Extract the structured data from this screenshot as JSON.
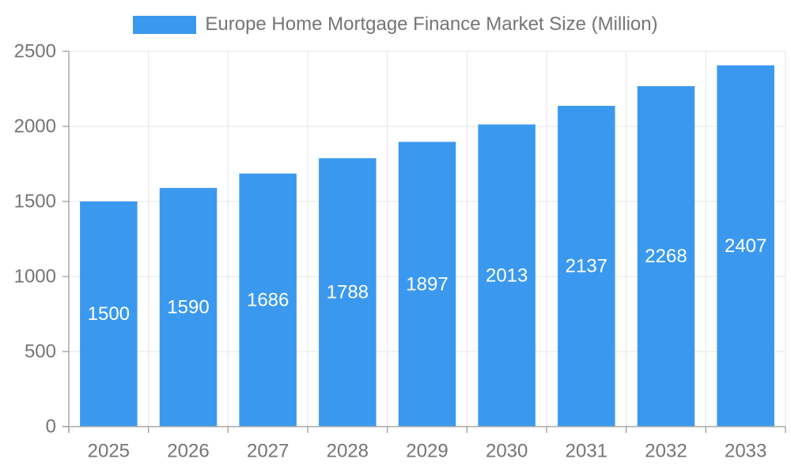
{
  "legend": {
    "label": "Europe Home Mortgage Finance Market Size (Million)"
  },
  "chart_data": {
    "type": "bar",
    "title": "",
    "xlabel": "",
    "ylabel": "",
    "categories": [
      "2025",
      "2026",
      "2027",
      "2028",
      "2029",
      "2030",
      "2031",
      "2032",
      "2033"
    ],
    "series": [
      {
        "name": "Europe Home Mortgage Finance Market Size (Million)",
        "values": [
          1500,
          1590,
          1686,
          1788,
          1897,
          2013,
          2137,
          2268,
          2407
        ]
      }
    ],
    "value_labels": [
      1500,
      1590,
      1686,
      1788,
      1897,
      2013,
      2137,
      2268,
      2407
    ],
    "value_label_position": "inside-center",
    "ylim": [
      0,
      2500
    ],
    "yticks": [
      0,
      500,
      1000,
      1500,
      2000,
      2500
    ],
    "grid": true,
    "legend_position": "top-center",
    "colors": {
      "bar": "#3A99EE",
      "grid": "#E5E5E5",
      "axis": "#A8A8A8",
      "tick_label": "#757575",
      "value_label": "#FFFFFF",
      "legend_text": "#757575",
      "background": "#FFFFFF"
    }
  }
}
